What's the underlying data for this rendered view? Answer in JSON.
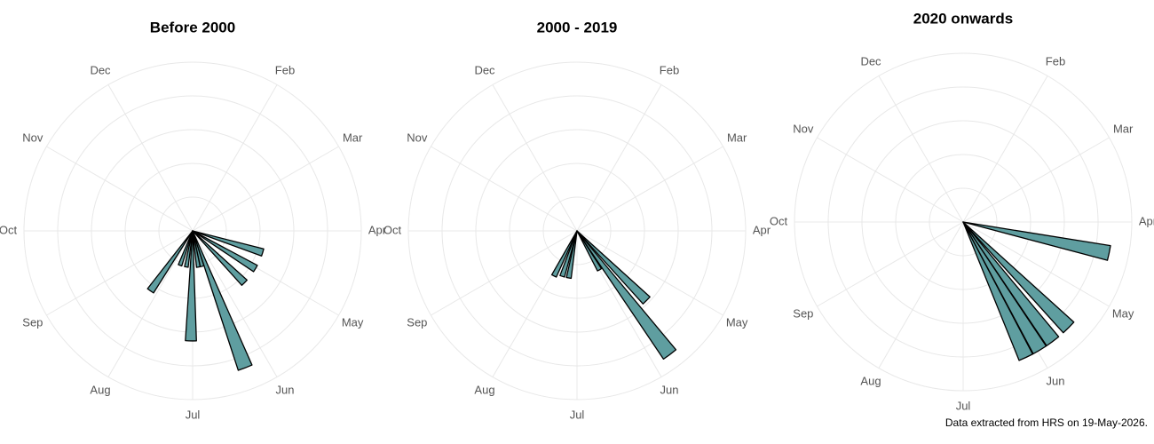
{
  "chart_data": [
    {
      "type": "polar-bar",
      "title": "Before 2000",
      "color": "#5f9ea0",
      "x": [
        4.57,
        5.03,
        5.5,
        6.3,
        6.5,
        6.7,
        7.03,
        7.33,
        7.67,
        8.17
      ],
      "values": [
        2,
        2,
        2,
        4,
        1,
        1,
        3,
        1,
        1,
        2
      ],
      "xlim": [
        1,
        13
      ],
      "xticks": [
        {
          "value": 2,
          "label": "Feb"
        },
        {
          "value": 3,
          "label": "Mar"
        },
        {
          "value": 4,
          "label": "Apr"
        },
        {
          "value": 5,
          "label": "May"
        },
        {
          "value": 6,
          "label": "Jun"
        },
        {
          "value": 7,
          "label": "Jul"
        },
        {
          "value": 8,
          "label": "Aug"
        },
        {
          "value": 9,
          "label": "Sep"
        },
        {
          "value": 10,
          "label": "Oct"
        },
        {
          "value": 11,
          "label": "Nov"
        },
        {
          "value": 12,
          "label": "Dec"
        }
      ],
      "ylim": [
        0,
        4.6
      ]
    },
    {
      "type": "polar-bar",
      "title": "2000 - 2019",
      "color": "#5f9ea0",
      "x": [
        5.5,
        5.77,
        6.0,
        7.33,
        7.6,
        7.9
      ],
      "values": [
        3.5,
        5.5,
        1.6,
        1.7,
        1.7,
        1.8
      ],
      "xlim": [
        1,
        13
      ],
      "xticks": [
        {
          "value": 2,
          "label": "Feb"
        },
        {
          "value": 3,
          "label": "Mar"
        },
        {
          "value": 4,
          "label": "Apr"
        },
        {
          "value": 5,
          "label": "May"
        },
        {
          "value": 6,
          "label": "Jun"
        },
        {
          "value": 7,
          "label": "Jul"
        },
        {
          "value": 8,
          "label": "Aug"
        },
        {
          "value": 9,
          "label": "Sep"
        },
        {
          "value": 10,
          "label": "Oct"
        },
        {
          "value": 11,
          "label": "Nov"
        },
        {
          "value": 12,
          "label": "Dec"
        }
      ],
      "ylim": [
        0,
        6
      ]
    },
    {
      "type": "polar-bar",
      "title": "2020 onwards",
      "color": "#5f9ea0",
      "x": [
        4.4,
        5.5,
        5.77,
        5.97,
        6.17
      ],
      "values": [
        1,
        1,
        1,
        1,
        1
      ],
      "xlim": [
        1,
        13
      ],
      "xticks": [
        {
          "value": 2,
          "label": "Feb"
        },
        {
          "value": 3,
          "label": "Mar"
        },
        {
          "value": 4,
          "label": "Apr"
        },
        {
          "value": 5,
          "label": "May"
        },
        {
          "value": 6,
          "label": "Jun"
        },
        {
          "value": 7,
          "label": "Jul"
        },
        {
          "value": 8,
          "label": "Aug"
        },
        {
          "value": 9,
          "label": "Sep"
        },
        {
          "value": 10,
          "label": "Oct"
        },
        {
          "value": 11,
          "label": "Nov"
        },
        {
          "value": 12,
          "label": "Dec"
        }
      ],
      "ylim": [
        0,
        1.13
      ]
    }
  ],
  "caption": "Data extracted from HRS on 19-May-2026."
}
